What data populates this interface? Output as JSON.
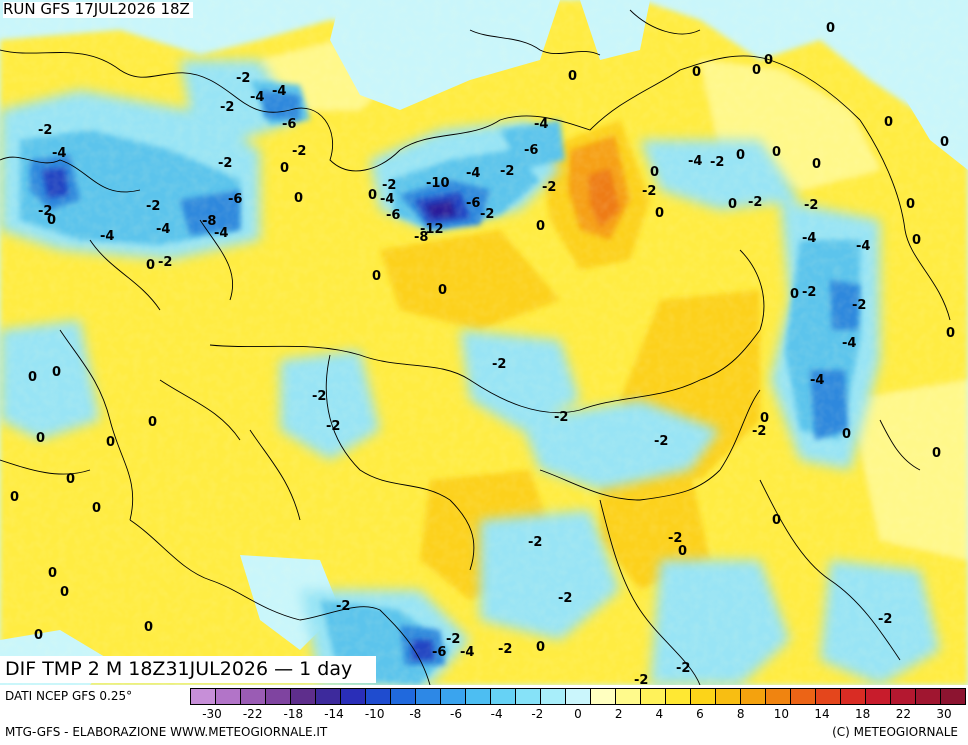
{
  "header": {
    "run_title": "RUN GFS 17JUL2026 18Z",
    "field_title": "DIF TMP 2 M 18Z31JUL2026 — 1 day"
  },
  "footer": {
    "data_source": "DATI NCEP GFS 0.25°",
    "credit_left": "MTG-GFS - ELABORAZIONE WWW.METEOGIORNALE.IT",
    "credit_right": "(C) METEOGIORNALE"
  },
  "legend": {
    "tick_labels": [
      "-30",
      "-22",
      "-18",
      "-14",
      "-10",
      "-8",
      "-6",
      "-4",
      "-2",
      "0",
      "2",
      "4",
      "6",
      "8",
      "10",
      "14",
      "18",
      "22",
      "30"
    ],
    "colors": [
      "#c78fd8",
      "#b274c8",
      "#9a5cb4",
      "#7f44a0",
      "#5e2e8c",
      "#3d2a9c",
      "#2a2eb8",
      "#1f4ccf",
      "#2069dd",
      "#2d88e6",
      "#3aa4ee",
      "#4dbef2",
      "#66d2f5",
      "#86e2f8",
      "#a8eefa",
      "#cbf6fc",
      "#ffffc0",
      "#fffa8c",
      "#fff25a",
      "#ffe833",
      "#fcd419",
      "#f8be12",
      "#f4a20e",
      "#f08410",
      "#ec6416",
      "#e4461c",
      "#d92c24",
      "#c81c2c",
      "#b41830",
      "#a01630",
      "#8c1430"
    ]
  },
  "map": {
    "colors": {
      "ocean": "#c9f6fb",
      "warm": "#ffec42",
      "warm_light": "#fff88a",
      "warmer": "#fcd11d",
      "hot": "#f6a012",
      "hotter": "#ee7c14",
      "cool": "#98e4f5",
      "cooler": "#5cc4ec",
      "cold": "#2e88dd",
      "colder": "#2444c2",
      "coldest": "#2b1e9a"
    },
    "contour_labels": [
      "0",
      "-2",
      "-4",
      "-6",
      "-8",
      "-10",
      "-12"
    ]
  }
}
